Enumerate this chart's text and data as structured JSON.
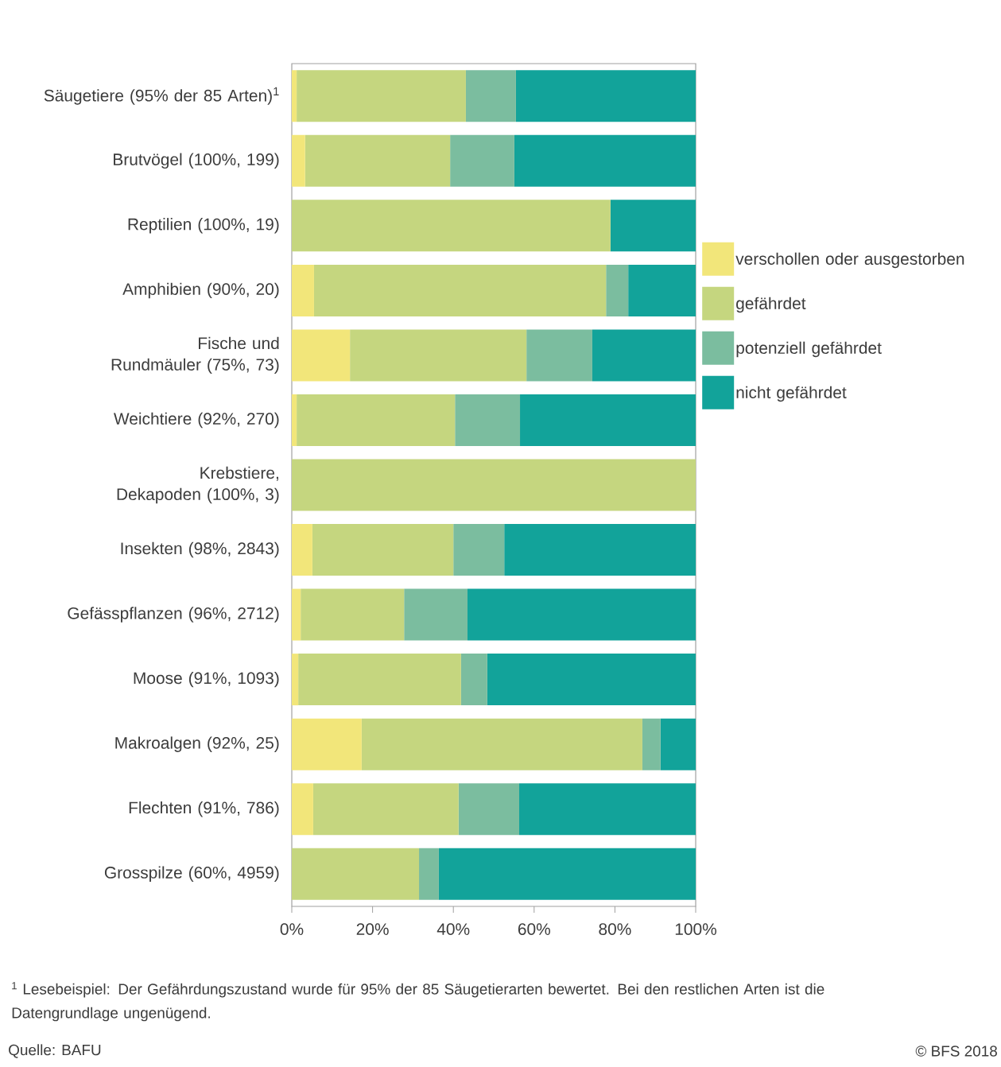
{
  "chart_data": {
    "type": "bar",
    "orientation": "horizontal",
    "stacked": true,
    "categories": [
      "Säugetiere (95% der 85 Arten)$^{1}$",
      "Brutvögel (100%, 199)",
      "Reptilien (100%, 19)",
      "Amphibien (90%, 20)",
      "Fische und Rundmäuler (75%, 73)",
      "Weichtiere (92%, 270)",
      "Krebstiere, Dekapoden (100%, 3)",
      "Insekten (98%, 2843)",
      "Gefässpflanzen (96%, 2712)",
      "Moose (91%, 1093)",
      "Makroalgen (92%, 25)",
      "Flechten (91%, 786)",
      "Grosspilze (60%, 4959)"
    ],
    "series": [
      {
        "name": "verschollen oder ausgestorben",
        "color": "#f2e67a",
        "values": [
          1.2,
          3.3,
          0,
          5.5,
          14.4,
          1.2,
          0,
          5.1,
          2.2,
          1.6,
          17.3,
          5.3,
          0
        ]
      },
      {
        "name": "gefährdet",
        "color": "#c5d67f",
        "values": [
          41.9,
          35.9,
          78.9,
          72.3,
          43.7,
          39.2,
          100,
          34.9,
          25.6,
          40.3,
          69.5,
          36,
          31.5
        ]
      },
      {
        "name": "potenziell gefährdet",
        "color": "#7bbd9f",
        "values": [
          12.4,
          15.9,
          0,
          5.5,
          16.3,
          16.1,
          0,
          12.6,
          15.7,
          6.5,
          4.5,
          15,
          4.9
        ]
      },
      {
        "name": "nicht gefährdet",
        "color": "#12a39a",
        "values": [
          44.5,
          44.9,
          21.1,
          16.7,
          25.6,
          43.5,
          0,
          47.4,
          56.5,
          51.6,
          8.7,
          43.7,
          63.6
        ]
      }
    ],
    "xlim": [
      0,
      100
    ],
    "xticks": [
      {
        "value": 0,
        "label": "0%"
      },
      {
        "value": 20,
        "label": "20%"
      },
      {
        "value": 40,
        "label": "40%"
      },
      {
        "value": 60,
        "label": "60%"
      },
      {
        "value": 80,
        "label": "80%"
      },
      {
        "value": 100,
        "label": "100%"
      }
    ],
    "grid": false,
    "legend": "right",
    "annotations": [
      "$^{1}$ Lesebeispiel: Der Gefährdungszustand wurde für 95% der 85 Säugetierarten bewertet. Bei den restlichen Arten ist die Datengrundlage ungenügend.",
      "Quelle: BAFU",
      "© BFS 2018"
    ]
  }
}
